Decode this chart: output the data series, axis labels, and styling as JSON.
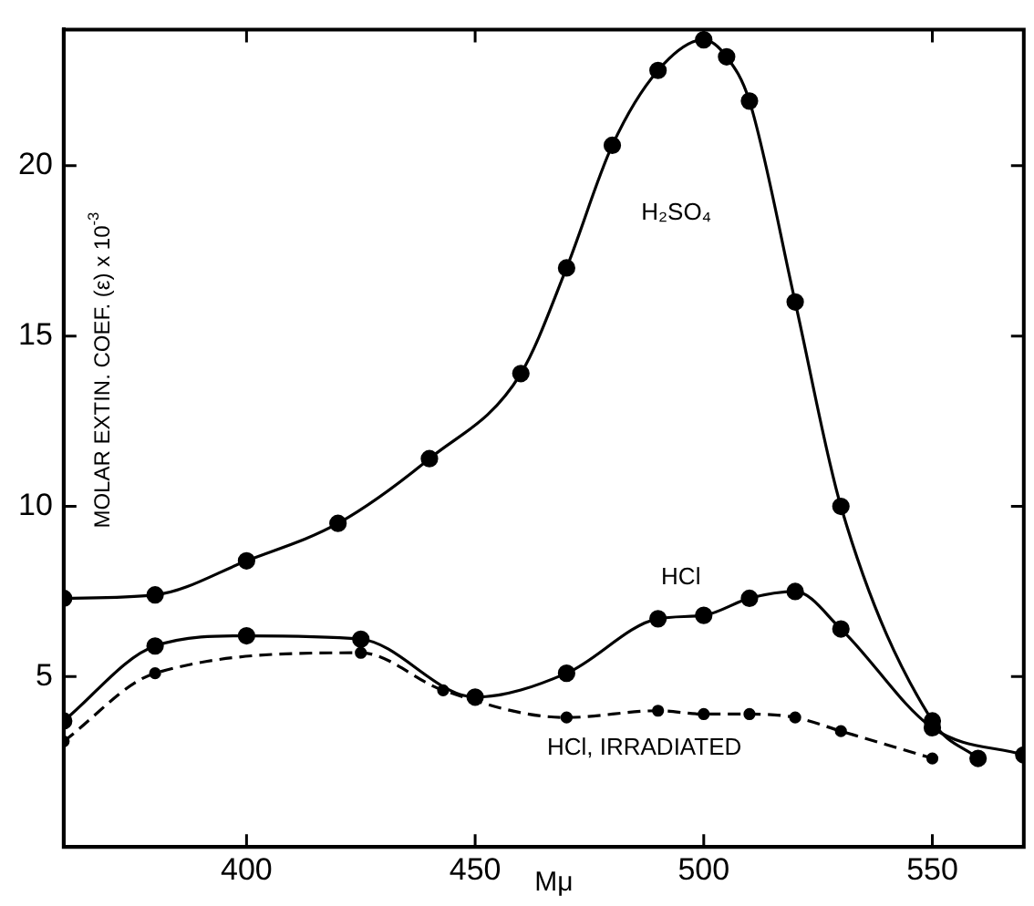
{
  "chart_data": {
    "type": "line",
    "xlabel": "Mμ",
    "ylabel": "MOLAR EXTIN. COEF. (ε) x 10$^{-3}$",
    "xlim": [
      360,
      570
    ],
    "ylim": [
      0,
      24
    ],
    "xticks": [
      400,
      450,
      500,
      550
    ],
    "yticks": [
      5,
      10,
      15,
      20
    ],
    "grid": false,
    "legend": false,
    "marker": "circle",
    "series": [
      {
        "name": "H₂SO₄",
        "color": "#000000",
        "line_style": "solid",
        "x": [
          360,
          380,
          400,
          420,
          440,
          460,
          470,
          480,
          490,
          500,
          505,
          510,
          520,
          530,
          550,
          560
        ],
        "values": [
          7.3,
          7.4,
          8.4,
          9.5,
          11.4,
          13.9,
          17.0,
          20.6,
          22.8,
          23.7,
          23.2,
          21.9,
          16.0,
          10.0,
          3.7,
          2.6
        ]
      },
      {
        "name": "HCl",
        "color": "#000000",
        "line_style": "solid",
        "x": [
          360,
          380,
          400,
          425,
          450,
          470,
          490,
          500,
          510,
          520,
          530,
          550,
          570
        ],
        "values": [
          3.7,
          5.9,
          6.2,
          6.1,
          4.4,
          5.1,
          6.7,
          6.8,
          7.3,
          7.5,
          6.4,
          3.5,
          2.7
        ]
      },
      {
        "name": "HCl, IRRADIATED",
        "color": "#000000",
        "line_style": "dashed",
        "x": [
          360,
          380,
          425,
          443,
          470,
          490,
          500,
          510,
          520,
          530,
          550
        ],
        "values": [
          3.1,
          5.1,
          5.7,
          4.6,
          3.8,
          4.0,
          3.9,
          3.9,
          3.8,
          3.4,
          2.6
        ]
      }
    ]
  }
}
